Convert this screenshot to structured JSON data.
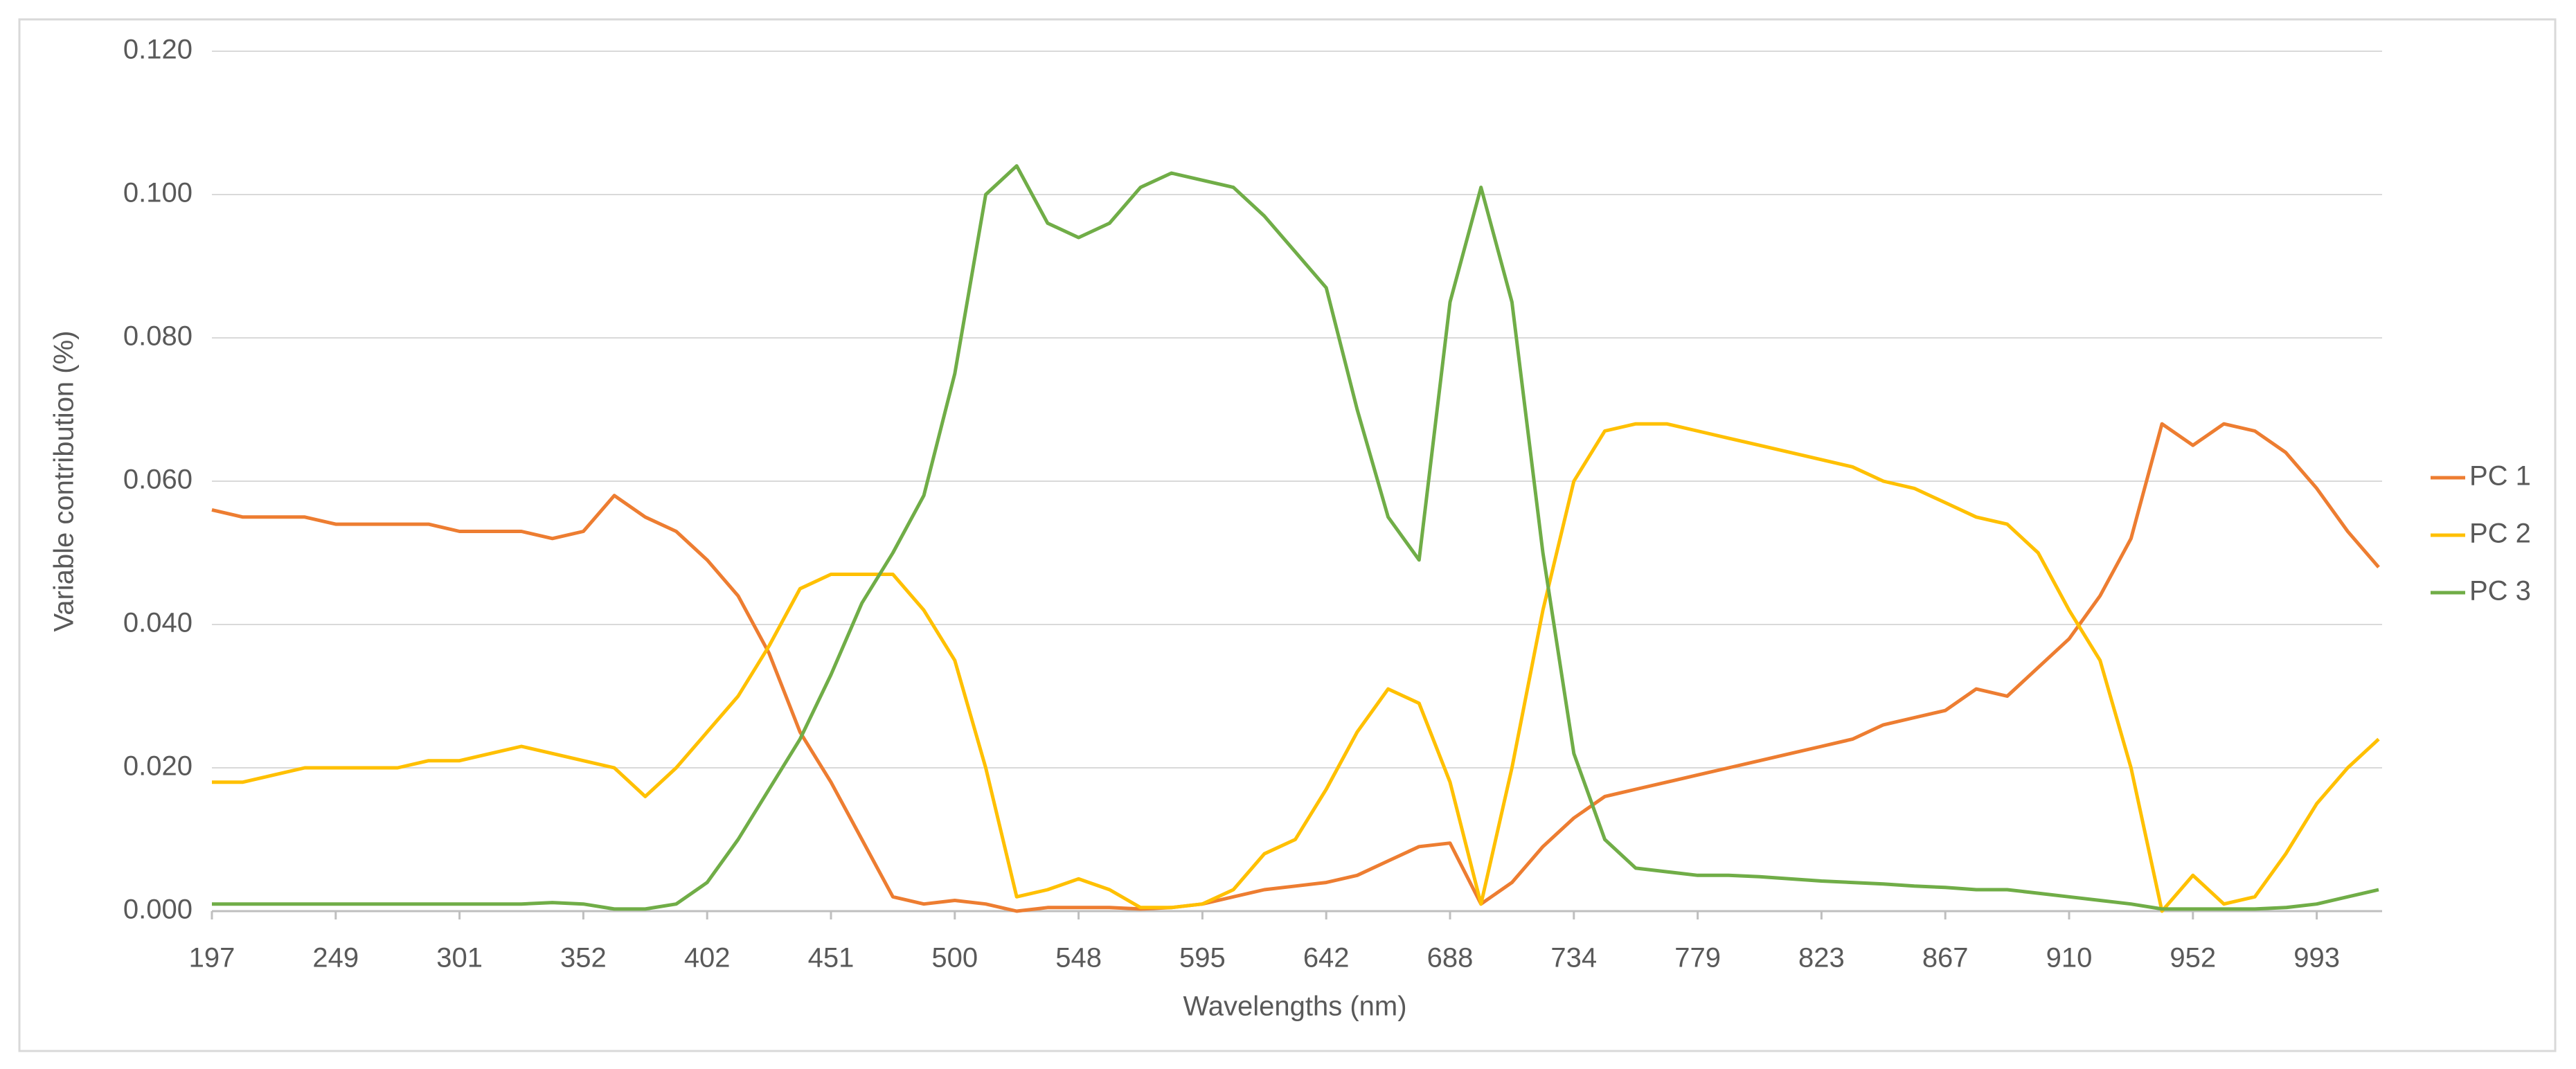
{
  "chart_data": {
    "type": "line",
    "x_label": "Wavelengths (nm)",
    "y_label": "Variable contribution (%)",
    "categories": [
      "197",
      null,
      null,
      null,
      "249",
      null,
      null,
      null,
      "301",
      null,
      null,
      null,
      "352",
      null,
      null,
      null,
      "402",
      null,
      null,
      null,
      "451",
      null,
      null,
      null,
      "500",
      null,
      null,
      null,
      "548",
      null,
      null,
      null,
      "595",
      null,
      null,
      null,
      "642",
      null,
      null,
      null,
      "688",
      null,
      null,
      null,
      "734",
      null,
      null,
      null,
      "779",
      null,
      null,
      null,
      "823",
      null,
      null,
      null,
      "867",
      null,
      null,
      null,
      "910",
      null,
      null,
      null,
      "952",
      null,
      null,
      null,
      "993",
      null,
      null
    ],
    "series": [
      {
        "name": "PC 1",
        "color": "#ED7D31",
        "values": [
          0.056,
          0.055,
          0.055,
          0.055,
          0.054,
          0.054,
          0.054,
          0.054,
          0.053,
          0.053,
          0.053,
          0.052,
          0.053,
          0.058,
          0.055,
          0.053,
          0.049,
          0.044,
          0.036,
          0.025,
          0.018,
          0.01,
          0.002,
          0.001,
          0.0015,
          0.001,
          0.0,
          0.0005,
          0.0005,
          0.0005,
          0.0003,
          0.0005,
          0.001,
          0.002,
          0.003,
          0.0035,
          0.004,
          0.005,
          0.007,
          0.009,
          0.0095,
          0.001,
          0.004,
          0.009,
          0.013,
          0.016,
          0.017,
          0.018,
          0.019,
          0.02,
          0.021,
          0.022,
          0.023,
          0.024,
          0.026,
          0.027,
          0.028,
          0.031,
          0.03,
          0.034,
          0.038,
          0.044,
          0.052,
          0.068,
          0.065,
          0.068,
          0.067,
          0.064,
          0.059,
          0.053,
          0.048
        ]
      },
      {
        "name": "PC 2",
        "color": "#FFC000",
        "values": [
          0.018,
          0.018,
          0.019,
          0.02,
          0.02,
          0.02,
          0.02,
          0.021,
          0.021,
          0.022,
          0.023,
          0.022,
          0.021,
          0.02,
          0.016,
          0.02,
          0.025,
          0.03,
          0.037,
          0.045,
          0.047,
          0.047,
          0.047,
          0.042,
          0.035,
          0.02,
          0.002,
          0.003,
          0.0045,
          0.003,
          0.0005,
          0.0005,
          0.001,
          0.003,
          0.008,
          0.01,
          0.017,
          0.025,
          0.031,
          0.029,
          0.018,
          0.001,
          0.02,
          0.042,
          0.06,
          0.067,
          0.068,
          0.068,
          0.067,
          0.066,
          0.065,
          0.064,
          0.063,
          0.062,
          0.06,
          0.059,
          0.057,
          0.055,
          0.054,
          0.05,
          0.042,
          0.035,
          0.02,
          0.0,
          0.005,
          0.001,
          0.002,
          0.008,
          0.015,
          0.02,
          0.024
        ]
      },
      {
        "name": "PC 3",
        "color": "#70AD47",
        "values": [
          0.001,
          0.001,
          0.001,
          0.001,
          0.001,
          0.001,
          0.001,
          0.001,
          0.001,
          0.001,
          0.001,
          0.0012,
          0.001,
          0.0003,
          0.0003,
          0.001,
          0.004,
          0.01,
          0.017,
          0.024,
          0.033,
          0.043,
          0.05,
          0.058,
          0.075,
          0.1,
          0.104,
          0.096,
          0.094,
          0.096,
          0.101,
          0.103,
          0.102,
          0.101,
          0.097,
          0.092,
          0.087,
          0.07,
          0.055,
          0.049,
          0.085,
          0.101,
          0.085,
          0.05,
          0.022,
          0.01,
          0.006,
          0.0055,
          0.005,
          0.005,
          0.0048,
          0.0045,
          0.0042,
          0.004,
          0.0038,
          0.0035,
          0.0033,
          0.003,
          0.003,
          0.0025,
          0.002,
          0.0015,
          0.001,
          0.0003,
          0.0003,
          0.0003,
          0.0003,
          0.0005,
          0.001,
          0.002,
          0.003
        ]
      }
    ],
    "ylim": [
      0,
      0.12
    ],
    "yticks": [
      {
        "value": 0,
        "label": "0.000"
      },
      {
        "value": 0.02,
        "label": "0.020"
      },
      {
        "value": 0.04,
        "label": "0.040"
      },
      {
        "value": 0.06,
        "label": "0.060"
      },
      {
        "value": 0.08,
        "label": "0.080"
      },
      {
        "value": 0.1,
        "label": "0.100"
      },
      {
        "value": 0.12,
        "label": "0.120"
      }
    ],
    "grid": true,
    "legend": "right"
  }
}
